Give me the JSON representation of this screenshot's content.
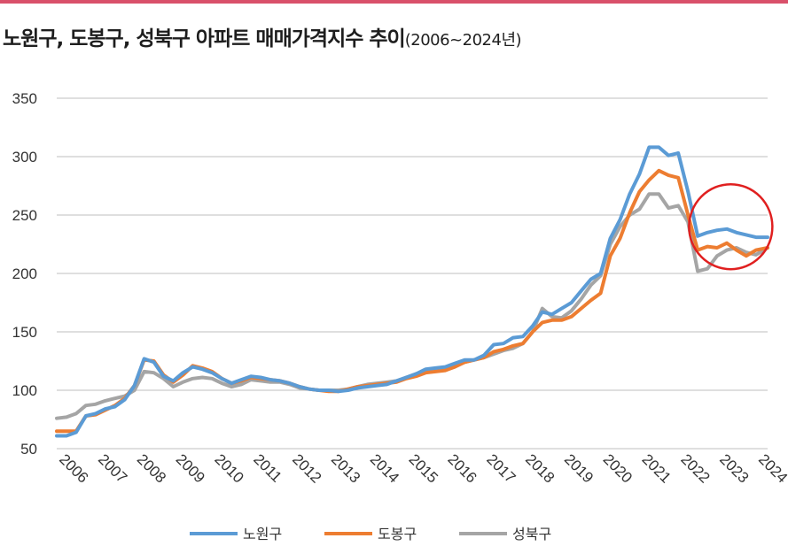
{
  "header": {
    "title_main": "노원구, 도봉구, 성북구 아파트 매매가격지수 추이",
    "title_sub": "(2006~2024년)"
  },
  "chart_data": {
    "type": "line",
    "title": "노원구, 도봉구, 성북구 아파트 매매가격지수 추이(2006~2024년)",
    "xlabel": "",
    "ylabel": "",
    "ylim": [
      50,
      350
    ],
    "yticks": [
      "50",
      "100",
      "150",
      "200",
      "250",
      "300",
      "350"
    ],
    "xlim": [
      2006,
      2024.3
    ],
    "categories": [
      "2006",
      "2007",
      "2008",
      "2009",
      "2010",
      "2011",
      "2012",
      "2013",
      "2014",
      "2015",
      "2016",
      "2017",
      "2018",
      "2019",
      "2020",
      "2021",
      "2022",
      "2023",
      "2024"
    ],
    "grid": true,
    "legend_position": "bottom",
    "series": [
      {
        "name": "노원구",
        "color": "#5b9bd5",
        "x": [
          2006.0,
          2006.25,
          2006.5,
          2006.75,
          2007.0,
          2007.25,
          2007.5,
          2007.75,
          2008.0,
          2008.25,
          2008.5,
          2008.75,
          2009.0,
          2009.25,
          2009.5,
          2009.75,
          2010.0,
          2010.25,
          2010.5,
          2010.75,
          2011.0,
          2011.25,
          2011.5,
          2011.75,
          2012.0,
          2012.25,
          2012.5,
          2012.75,
          2013.0,
          2013.25,
          2013.5,
          2013.75,
          2014.0,
          2014.25,
          2014.5,
          2014.75,
          2015.0,
          2015.25,
          2015.5,
          2015.75,
          2016.0,
          2016.25,
          2016.5,
          2016.75,
          2017.0,
          2017.25,
          2017.5,
          2017.75,
          2018.0,
          2018.25,
          2018.5,
          2018.75,
          2019.0,
          2019.25,
          2019.5,
          2019.75,
          2020.0,
          2020.25,
          2020.5,
          2020.75,
          2021.0,
          2021.25,
          2021.5,
          2021.75,
          2022.0,
          2022.25,
          2022.5,
          2022.75,
          2023.0,
          2023.25,
          2023.5,
          2023.75,
          2024.0,
          2024.3
        ],
        "y": [
          61,
          61,
          64,
          78,
          80,
          84,
          86,
          92,
          104,
          127,
          124,
          112,
          108,
          115,
          120,
          118,
          115,
          110,
          106,
          109,
          112,
          111,
          109,
          108,
          106,
          103,
          101,
          100,
          100,
          99,
          100,
          102,
          103,
          104,
          105,
          108,
          111,
          114,
          118,
          119,
          120,
          123,
          126,
          126,
          130,
          139,
          140,
          145,
          146,
          155,
          167,
          165,
          170,
          175,
          185,
          195,
          200,
          230,
          246,
          268,
          285,
          308,
          308,
          301,
          303,
          270,
          232,
          235,
          237,
          238,
          235,
          233,
          231,
          231
        ]
      },
      {
        "name": "도봉구",
        "color": "#ed7d31",
        "x": [
          2006.0,
          2006.25,
          2006.5,
          2006.75,
          2007.0,
          2007.25,
          2007.5,
          2007.75,
          2008.0,
          2008.25,
          2008.5,
          2008.75,
          2009.0,
          2009.25,
          2009.5,
          2009.75,
          2010.0,
          2010.25,
          2010.5,
          2010.75,
          2011.0,
          2011.25,
          2011.5,
          2011.75,
          2012.0,
          2012.25,
          2012.5,
          2012.75,
          2013.0,
          2013.25,
          2013.5,
          2013.75,
          2014.0,
          2014.25,
          2014.5,
          2014.75,
          2015.0,
          2015.25,
          2015.5,
          2015.75,
          2016.0,
          2016.25,
          2016.5,
          2016.75,
          2017.0,
          2017.25,
          2017.5,
          2017.75,
          2018.0,
          2018.25,
          2018.5,
          2018.75,
          2019.0,
          2019.25,
          2019.5,
          2019.75,
          2020.0,
          2020.25,
          2020.5,
          2020.75,
          2021.0,
          2021.25,
          2021.5,
          2021.75,
          2022.0,
          2022.25,
          2022.5,
          2022.75,
          2023.0,
          2023.25,
          2023.5,
          2023.75,
          2024.0,
          2024.3
        ],
        "y": [
          65,
          65,
          65,
          78,
          79,
          83,
          87,
          93,
          104,
          126,
          125,
          113,
          107,
          113,
          121,
          119,
          116,
          110,
          106,
          108,
          111,
          110,
          109,
          108,
          106,
          103,
          101,
          100,
          99,
          99,
          101,
          103,
          104,
          105,
          106,
          107,
          110,
          112,
          115,
          116,
          117,
          120,
          124,
          126,
          128,
          133,
          135,
          138,
          140,
          150,
          158,
          160,
          160,
          163,
          170,
          177,
          183,
          215,
          230,
          252,
          270,
          280,
          288,
          284,
          282,
          250,
          220,
          223,
          222,
          226,
          220,
          215,
          220,
          222
        ]
      },
      {
        "name": "성북구",
        "color": "#a5a5a5",
        "x": [
          2006.0,
          2006.25,
          2006.5,
          2006.75,
          2007.0,
          2007.25,
          2007.5,
          2007.75,
          2008.0,
          2008.25,
          2008.5,
          2008.75,
          2009.0,
          2009.25,
          2009.5,
          2009.75,
          2010.0,
          2010.25,
          2010.5,
          2010.75,
          2011.0,
          2011.25,
          2011.5,
          2011.75,
          2012.0,
          2012.25,
          2012.5,
          2012.75,
          2013.0,
          2013.25,
          2013.5,
          2013.75,
          2014.0,
          2014.25,
          2014.5,
          2014.75,
          2015.0,
          2015.25,
          2015.5,
          2015.75,
          2016.0,
          2016.25,
          2016.5,
          2016.75,
          2017.0,
          2017.25,
          2017.5,
          2017.75,
          2018.0,
          2018.25,
          2018.5,
          2018.75,
          2019.0,
          2019.25,
          2019.5,
          2019.75,
          2020.0,
          2020.25,
          2020.5,
          2020.75,
          2021.0,
          2021.25,
          2021.5,
          2021.75,
          2022.0,
          2022.25,
          2022.5,
          2022.75,
          2023.0,
          2023.25,
          2023.5,
          2023.75,
          2024.0,
          2024.3
        ],
        "y": [
          76,
          77,
          80,
          87,
          88,
          91,
          93,
          95,
          100,
          116,
          115,
          110,
          103,
          107,
          110,
          111,
          110,
          106,
          103,
          105,
          109,
          108,
          107,
          107,
          105,
          102,
          101,
          100,
          100,
          100,
          101,
          103,
          105,
          106,
          107,
          108,
          111,
          114,
          117,
          118,
          119,
          121,
          124,
          126,
          128,
          131,
          134,
          136,
          140,
          150,
          170,
          163,
          162,
          168,
          178,
          190,
          198,
          225,
          240,
          250,
          255,
          268,
          268,
          256,
          258,
          244,
          202,
          204,
          215,
          220,
          222,
          218,
          216,
          222
        ]
      }
    ],
    "annotations": [
      {
        "type": "circle",
        "color": "#e02020",
        "x_center": 2023.35,
        "y_center": 240,
        "note": ""
      }
    ]
  }
}
